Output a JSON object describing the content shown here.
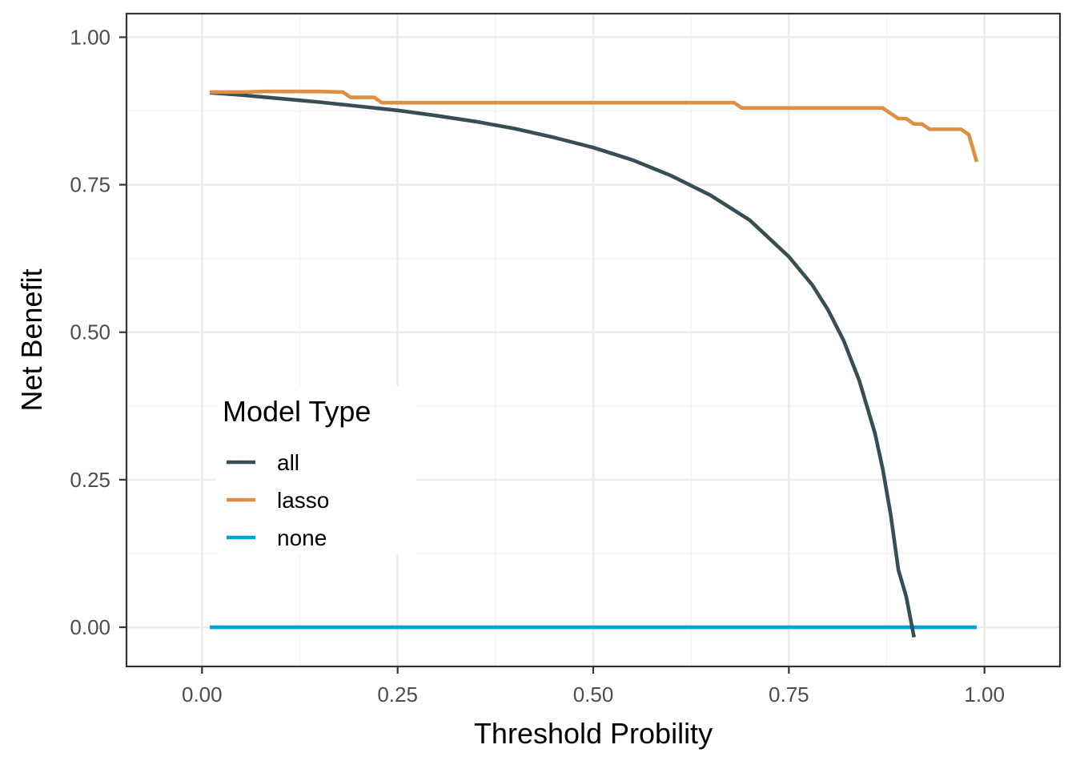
{
  "chart_data": {
    "type": "line",
    "title": "",
    "xlabel": "Threshold Probility",
    "ylabel": "Net Benefit",
    "xlim": [
      -0.0965,
      1.0965
    ],
    "ylim": [
      -0.0665,
      1.04
    ],
    "grid": true,
    "legend": {
      "title": "Model Type",
      "placement": "left-middle inside plot"
    },
    "x_ticks": [
      0,
      0.25,
      0.5,
      0.75,
      1
    ],
    "x_tick_labels": [
      "0.00",
      "0.25",
      "0.50",
      "0.75",
      "1.00"
    ],
    "y_ticks": [
      0,
      0.25,
      0.5,
      0.75,
      1
    ],
    "y_tick_labels": [
      "0.00",
      "0.25",
      "0.50",
      "0.75",
      "1.00"
    ],
    "colors": {
      "all": "#374e55",
      "lasso": "#df8f44",
      "none": "#00a1d5",
      "grid_major": "#ebebeb",
      "grid_minor": "#f3f3f3",
      "panel_border": "#333333"
    },
    "series": [
      {
        "name": "all",
        "color": "#374e55",
        "x": [
          0.01,
          0.05,
          0.1,
          0.15,
          0.2,
          0.25,
          0.3,
          0.35,
          0.4,
          0.45,
          0.5,
          0.55,
          0.6,
          0.65,
          0.7,
          0.75,
          0.78,
          0.8,
          0.82,
          0.84,
          0.86,
          0.87,
          0.88,
          0.89,
          0.9,
          0.91
        ],
        "y": [
          0.906,
          0.902,
          0.896,
          0.89,
          0.883,
          0.876,
          0.867,
          0.857,
          0.845,
          0.83,
          0.813,
          0.792,
          0.765,
          0.732,
          0.69,
          0.628,
          0.58,
          0.538,
          0.486,
          0.418,
          0.329,
          0.268,
          0.192,
          0.097,
          0.052,
          -0.017
        ]
      },
      {
        "name": "lasso",
        "color": "#df8f44",
        "x": [
          0.01,
          0.05,
          0.08,
          0.15,
          0.18,
          0.19,
          0.2,
          0.22,
          0.23,
          0.3,
          0.5,
          0.68,
          0.69,
          0.75,
          0.87,
          0.88,
          0.89,
          0.9,
          0.91,
          0.92,
          0.93,
          0.96,
          0.97,
          0.98,
          0.99
        ],
        "y": [
          0.907,
          0.907,
          0.908,
          0.908,
          0.907,
          0.898,
          0.898,
          0.898,
          0.889,
          0.889,
          0.889,
          0.889,
          0.88,
          0.88,
          0.88,
          0.871,
          0.862,
          0.862,
          0.853,
          0.853,
          0.844,
          0.844,
          0.844,
          0.835,
          0.789
        ]
      },
      {
        "name": "none",
        "color": "#00a1d5",
        "x": [
          0.01,
          0.99
        ],
        "y": [
          0,
          0
        ]
      }
    ]
  }
}
